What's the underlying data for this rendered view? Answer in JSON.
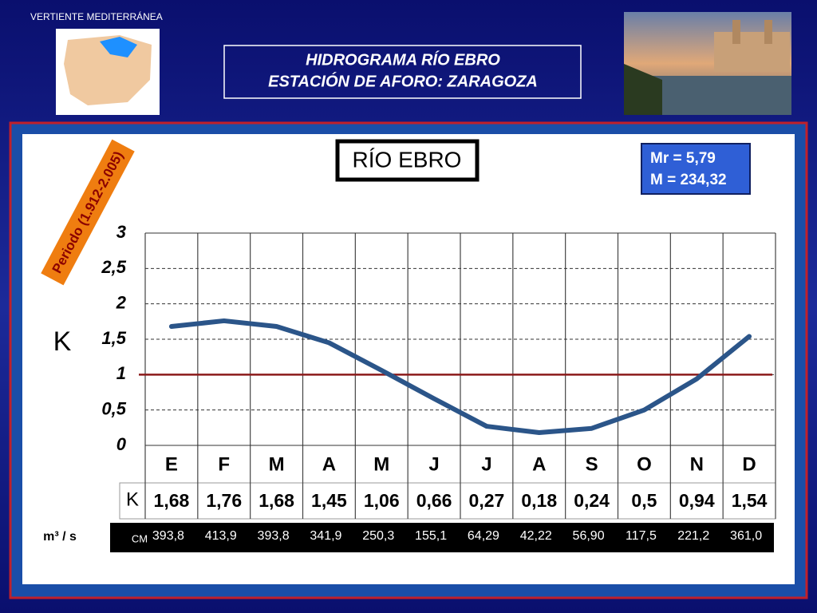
{
  "header": {
    "region": "VERTIENTE  MEDITERRÁNEA",
    "title_line1": "HIDROGRAMA  RÍO  EBRO",
    "title_line2": "ESTACIÓN DE AFORO:  ZARAGOZA"
  },
  "chart_data": {
    "type": "line",
    "title": "RÍO EBRO",
    "period": "Periodo (1.912-2.005)",
    "stats": [
      "Mr = 5,79",
      "M = 234,32"
    ],
    "y_label": "K",
    "categories": [
      "E",
      "F",
      "M",
      "A",
      "M",
      "J",
      "J",
      "A",
      "S",
      "O",
      "N",
      "D"
    ],
    "values": [
      1.68,
      1.76,
      1.68,
      1.45,
      1.06,
      0.66,
      0.27,
      0.18,
      0.24,
      0.5,
      0.94,
      1.54
    ],
    "value_labels": [
      "1,68",
      "1,76",
      "1,68",
      "1,45",
      "1,06",
      "0,66",
      "0,27",
      "0,18",
      "0,24",
      "0,5",
      "0,94",
      "1,54"
    ],
    "color": "#2b5589",
    "ylim": [
      0,
      3
    ],
    "yticks": [
      0,
      {
        "value": 0.5,
        "label": "0,5"
      },
      1,
      {
        "value": 1.5,
        "label": "1,5"
      },
      2,
      {
        "value": 2.5,
        "label": "2,5"
      },
      3
    ],
    "grid": true,
    "reference_line": {
      "value": 1,
      "color": "#8b1a1a"
    },
    "table_row_label": "K",
    "flow_unit": "m³ / s",
    "flow_label": "CM",
    "flow_values": [
      "393,8",
      "413,9",
      "393,8",
      "341,9",
      "250,3",
      "155,1",
      "64,29",
      "42,22",
      "56,90",
      "117,5",
      "221,2",
      "361,0"
    ]
  }
}
